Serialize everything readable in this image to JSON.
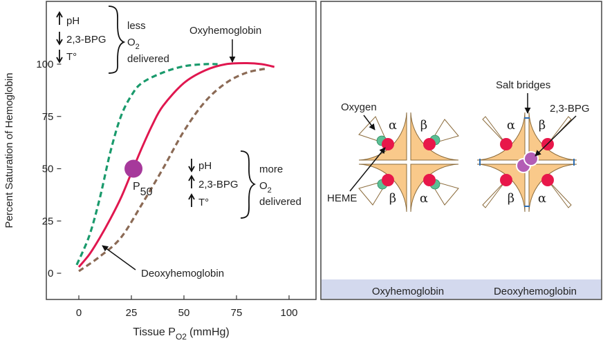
{
  "chart_data": {
    "type": "line",
    "xlabel": "Tissue P",
    "xlabel_sub": "O2",
    "xlabel_unit": "(mmHg)",
    "ylabel": "Percent Saturation of Hemoglobin",
    "xlim": [
      -15,
      110
    ],
    "ylim": [
      -20,
      115
    ],
    "xticks": [
      0,
      25,
      50,
      75,
      100
    ],
    "yticks": [
      0,
      25,
      50,
      75,
      100
    ],
    "grid": false,
    "series": [
      {
        "style": "solid",
        "color": "#e0174f",
        "x": [
          0,
          5,
          10,
          15,
          20,
          25,
          30,
          35,
          40,
          50,
          60,
          70,
          80,
          87,
          93
        ],
        "y": [
          3,
          9,
          17,
          26,
          36,
          48,
          60,
          71,
          80,
          91,
          97,
          100,
          100.5,
          100,
          98.7
        ]
      },
      {
        "style": "dashed",
        "color": "#1a9a6c",
        "x": [
          -1,
          5,
          10,
          15,
          20,
          25,
          30,
          40,
          50,
          60,
          66
        ],
        "y": [
          4,
          18,
          36,
          58,
          75,
          85,
          91,
          96,
          99,
          100,
          100
        ]
      },
      {
        "style": "dashed",
        "color": "#8b6a55",
        "x": [
          0,
          10,
          20,
          30,
          40,
          50,
          60,
          70,
          80,
          90
        ],
        "y": [
          1,
          8,
          17,
          33,
          50,
          68,
          82,
          91,
          96,
          98
        ]
      }
    ],
    "p50_point": {
      "x": 26,
      "y": 50,
      "label": "P",
      "label_sub": "50",
      "color": "#a6399b"
    },
    "annotations": {
      "oxy": "Oxyhemoglobin",
      "deoxy": "Deoxyhemoglobin",
      "left_group": {
        "items": [
          "pH",
          "2,3-BPG",
          "T°"
        ],
        "arrows": [
          "up",
          "down",
          "down"
        ],
        "result_1": "less",
        "result_2": "O",
        "result_2_sub": "2",
        "result_3": "delivered"
      },
      "right_group": {
        "items": [
          "pH",
          "2,3-BPG",
          "T°"
        ],
        "arrows": [
          "down",
          "up",
          "up"
        ],
        "result_1": "more",
        "result_2": "O",
        "result_2_sub": "2",
        "result_3": "delivered"
      }
    }
  },
  "diagram": {
    "oxygen_label": "Oxygen",
    "heme_label": "HEME",
    "salt_bridges_label": "Salt bridges",
    "bpg_label": "2,3-BPG",
    "alpha": "α",
    "beta": "β",
    "caption_oxy": "Oxyhemoglobin",
    "caption_deoxy": "Deoxyhemoglobin",
    "colors": {
      "subunit": "#f9c98a",
      "heme": "#e8174a",
      "oxygen": "#5bbf95",
      "bpg": "#b35db5",
      "band": "#d3d9ee",
      "salt_bridge": "#2a6db5"
    }
  }
}
